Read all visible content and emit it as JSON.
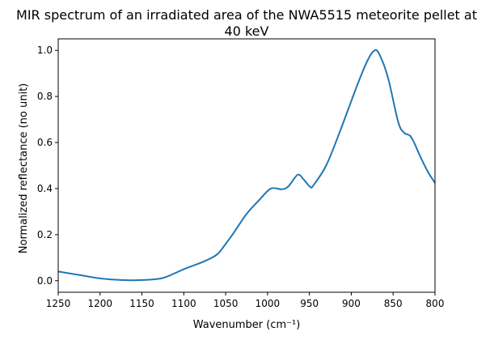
{
  "chart_data": {
    "type": "line",
    "title_lines": [
      "MIR spectrum of an irradiated area of the NWA5515 meteorite pellet at",
      "40 keV"
    ],
    "xlabel": "Wavenumber (cm⁻¹)",
    "ylabel": "Normalized reflectance (no unit)",
    "xlim": [
      1250,
      800
    ],
    "x_reversed": true,
    "ylim": [
      -0.05,
      1.05
    ],
    "xticks": [
      1250,
      1200,
      1150,
      1100,
      1050,
      1000,
      950,
      900,
      850,
      800
    ],
    "xtick_labels": [
      "1250",
      "1200",
      "1150",
      "1100",
      "1050",
      "1000",
      "950",
      "900",
      "850",
      "800"
    ],
    "yticks": [
      0.0,
      0.2,
      0.4,
      0.6,
      0.8,
      1.0
    ],
    "ytick_labels": [
      "0.0",
      "0.2",
      "0.4",
      "0.6",
      "0.8",
      "1.0"
    ],
    "grid": false,
    "line_color": "#1f77b4",
    "x": [
      1250,
      1225,
      1200,
      1175,
      1150,
      1125,
      1100,
      1075,
      1060,
      1050,
      1040,
      1025,
      1010,
      996,
      983,
      975,
      964,
      957,
      949,
      945,
      930,
      914,
      892,
      880,
      872,
      866,
      856,
      844,
      837,
      830,
      825,
      817,
      808,
      800
    ],
    "y": [
      0.04,
      0.025,
      0.01,
      0.003,
      0.003,
      0.012,
      0.05,
      0.085,
      0.115,
      0.16,
      0.21,
      0.29,
      0.35,
      0.4,
      0.397,
      0.41,
      0.46,
      0.44,
      0.407,
      0.415,
      0.5,
      0.643,
      0.857,
      0.96,
      1.0,
      0.98,
      0.88,
      0.69,
      0.643,
      0.63,
      0.6,
      0.535,
      0.47,
      0.425
    ]
  }
}
